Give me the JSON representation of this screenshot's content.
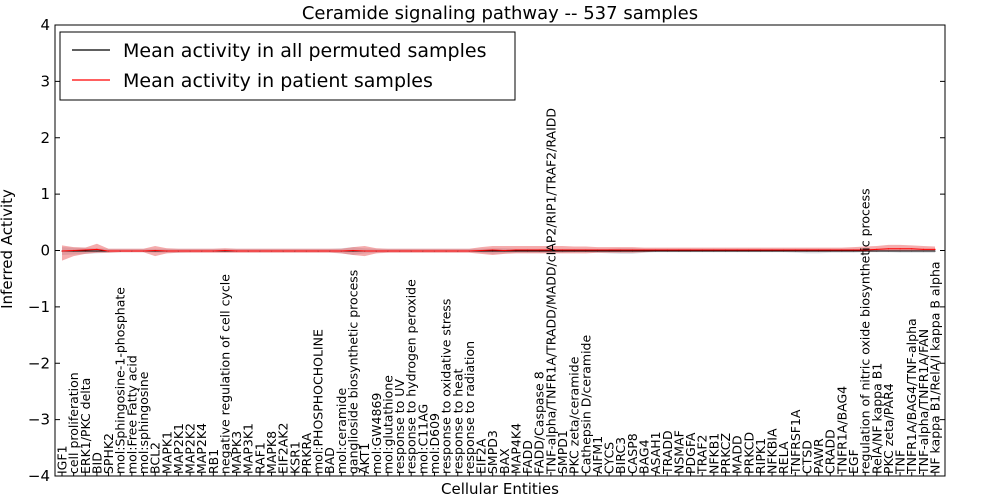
{
  "chart_data": {
    "type": "line",
    "title": "Ceramide signaling pathway -- 537 samples",
    "xlabel": "Cellular Entities",
    "ylabel": "Inferred Activity",
    "ylim": [
      -4,
      4
    ],
    "yticks": [
      -4,
      -3,
      -2,
      -1,
      0,
      1,
      2,
      3,
      4
    ],
    "ytick_labels": [
      "−4",
      "−3",
      "−2",
      "−1",
      "0",
      "1",
      "2",
      "3",
      "4"
    ],
    "grid": false,
    "legend_position": "top-left",
    "categories": [
      "IGF1",
      "cell proliferation",
      "ERK1/PKC delta",
      "BID",
      "SPHK2",
      "mol:Sphingosine-1-phosphate",
      "mol:Free Fatty acid",
      "mol:sphingosine",
      "BCL2",
      "MAPK1",
      "MAP2K1",
      "MAP2K2",
      "MAP2K4",
      "RB1",
      "negative regulation of cell cycle",
      "MAPK3",
      "MAP3K1",
      "RAF1",
      "MAPK8",
      "EIF2AK2",
      "KSR1",
      "PRKRA",
      "mol:PHOSPHOCHOLINE",
      "BAD",
      "mol:ceramide",
      "ganglioside biosynthetic process",
      "AKT1",
      "mol:GW4869",
      "mol:glutathione",
      "response to UV",
      "response to hydrogen peroxide",
      "mol:C11AG",
      "mol:D609",
      "response to oxidative stress",
      "response to heat",
      "response to radiation",
      "EIF2A",
      "SMPD3",
      "BAX",
      "MAP4K4",
      "FADD",
      "FADD/Caspase 8",
      "TNF-alpha/TNFR1A/TRADD/MADD/cIAP2/RIP1/TRAF2/RAIDD",
      "SMPD1",
      "PKC zeta/ceramide",
      "Cathepsin D/ceramide",
      "AIFM1",
      "CYCS",
      "BIRC3",
      "CASP8",
      "BAG4",
      "ASAH1",
      "TRADD",
      "NSMAF",
      "PDGFA",
      "TRAF2",
      "NFKB1",
      "PRKCZ",
      "MADD",
      "PRKCD",
      "RIPK1",
      "NFKBIA",
      "RELA",
      "TNFRSF1A",
      "CTSD",
      "PAWR",
      "CRADD",
      "TNFR1A/BAG4",
      "EGF",
      "regulation of nitric oxide biosynthetic process",
      "RelA/NF kappa B1",
      "PKC zeta/PAR4",
      "TNF",
      "TNFR1A/BAG4/TNF-alpha",
      "TNF-alpha/TNFR1A/FAN",
      "NF kappa B1/RelA/I kappa B alpha"
    ],
    "series": [
      {
        "name": "Mean activity in all permuted samples",
        "color": "#000000",
        "values": [
          -0.01,
          -0.01,
          -0.01,
          -0.01,
          -0.01,
          -0.01,
          -0.01,
          -0.01,
          -0.01,
          -0.01,
          -0.01,
          -0.01,
          -0.01,
          -0.01,
          -0.01,
          -0.01,
          -0.01,
          -0.01,
          -0.01,
          -0.01,
          -0.01,
          -0.01,
          -0.01,
          -0.01,
          -0.01,
          -0.01,
          -0.01,
          -0.01,
          -0.01,
          -0.01,
          -0.01,
          -0.01,
          -0.01,
          -0.01,
          -0.01,
          -0.01,
          -0.01,
          -0.01,
          -0.01,
          -0.01,
          -0.01,
          -0.01,
          -0.01,
          -0.01,
          -0.01,
          -0.01,
          -0.01,
          -0.01,
          -0.01,
          -0.01,
          -0.01,
          -0.01,
          -0.01,
          -0.01,
          -0.01,
          -0.01,
          -0.01,
          -0.01,
          -0.01,
          -0.01,
          -0.01,
          -0.01,
          -0.01,
          -0.01,
          -0.01,
          -0.01,
          -0.01,
          -0.01,
          -0.01,
          -0.01,
          -0.01,
          -0.01,
          -0.01,
          -0.01,
          -0.01,
          -0.01
        ],
        "band_lower": [
          -0.08,
          -0.07,
          -0.06,
          -0.05,
          -0.04,
          -0.03,
          -0.03,
          -0.03,
          -0.04,
          -0.04,
          -0.04,
          -0.03,
          -0.03,
          -0.03,
          -0.03,
          -0.03,
          -0.03,
          -0.03,
          -0.03,
          -0.03,
          -0.03,
          -0.03,
          -0.03,
          -0.03,
          -0.05,
          -0.08,
          -0.05,
          -0.04,
          -0.03,
          -0.03,
          -0.03,
          -0.03,
          -0.03,
          -0.03,
          -0.03,
          -0.03,
          -0.04,
          -0.06,
          -0.05,
          -0.04,
          -0.04,
          -0.04,
          -0.04,
          -0.04,
          -0.03,
          -0.03,
          -0.04,
          -0.05,
          -0.06,
          -0.06,
          -0.04,
          -0.03,
          -0.03,
          -0.03,
          -0.03,
          -0.03,
          -0.03,
          -0.03,
          -0.03,
          -0.03,
          -0.03,
          -0.03,
          -0.03,
          -0.04,
          -0.05,
          -0.05,
          -0.04,
          -0.04,
          -0.04,
          -0.03,
          -0.03,
          -0.03,
          -0.04,
          -0.04,
          -0.04,
          -0.04
        ],
        "band_upper": [
          0.06,
          0.05,
          0.05,
          0.04,
          0.03,
          0.03,
          0.03,
          0.03,
          0.03,
          0.03,
          0.03,
          0.03,
          0.03,
          0.03,
          0.03,
          0.03,
          0.03,
          0.03,
          0.03,
          0.03,
          0.03,
          0.03,
          0.03,
          0.03,
          0.04,
          0.06,
          0.04,
          0.03,
          0.03,
          0.03,
          0.03,
          0.03,
          0.03,
          0.03,
          0.03,
          0.03,
          0.03,
          0.04,
          0.04,
          0.03,
          0.03,
          0.03,
          0.03,
          0.03,
          0.03,
          0.03,
          0.03,
          0.03,
          0.04,
          0.04,
          0.03,
          0.03,
          0.03,
          0.03,
          0.03,
          0.03,
          0.03,
          0.03,
          0.03,
          0.03,
          0.03,
          0.03,
          0.03,
          0.03,
          0.03,
          0.03,
          0.03,
          0.03,
          0.03,
          0.03,
          0.03,
          0.03,
          0.03,
          0.03,
          0.03,
          0.03
        ]
      },
      {
        "name": "Mean activity in patient samples",
        "color": "#ff0000",
        "values": [
          -0.01,
          0.0,
          0.01,
          0.02,
          -0.01,
          -0.01,
          -0.01,
          -0.01,
          0.0,
          -0.01,
          -0.01,
          -0.01,
          -0.01,
          -0.01,
          0.0,
          -0.01,
          -0.01,
          -0.01,
          -0.01,
          -0.01,
          -0.01,
          -0.01,
          -0.01,
          -0.01,
          -0.01,
          0.0,
          -0.01,
          -0.01,
          -0.01,
          -0.01,
          -0.01,
          -0.01,
          -0.01,
          -0.01,
          -0.01,
          -0.01,
          0.0,
          0.01,
          0.0,
          0.01,
          0.01,
          0.01,
          0.01,
          0.01,
          0.01,
          0.01,
          0.01,
          0.01,
          0.01,
          0.01,
          0.01,
          0.01,
          0.01,
          0.01,
          0.01,
          0.01,
          0.01,
          0.01,
          0.01,
          0.01,
          0.01,
          0.01,
          0.01,
          0.01,
          0.01,
          0.01,
          0.01,
          0.01,
          0.01,
          0.01,
          0.02,
          0.03,
          0.03,
          0.03,
          0.02,
          0.02
        ],
        "band_lower": [
          -0.18,
          -0.1,
          -0.06,
          -0.04,
          -0.04,
          -0.03,
          -0.03,
          -0.03,
          -0.1,
          -0.05,
          -0.04,
          -0.04,
          -0.04,
          -0.04,
          -0.04,
          -0.04,
          -0.04,
          -0.04,
          -0.04,
          -0.04,
          -0.04,
          -0.04,
          -0.04,
          -0.04,
          -0.05,
          -0.08,
          -0.1,
          -0.05,
          -0.04,
          -0.04,
          -0.04,
          -0.04,
          -0.04,
          -0.04,
          -0.04,
          -0.04,
          -0.06,
          -0.08,
          -0.06,
          -0.05,
          -0.05,
          -0.05,
          -0.05,
          -0.05,
          -0.05,
          -0.05,
          -0.04,
          -0.04,
          -0.04,
          -0.04,
          -0.03,
          -0.02,
          -0.02,
          -0.02,
          -0.02,
          -0.02,
          -0.02,
          -0.02,
          -0.02,
          -0.02,
          -0.02,
          -0.02,
          -0.02,
          -0.02,
          -0.02,
          -0.02,
          -0.02,
          -0.02,
          -0.02,
          -0.02,
          -0.02,
          -0.01,
          -0.01,
          -0.01,
          -0.01,
          -0.01
        ],
        "band_upper": [
          0.09,
          0.06,
          0.05,
          0.12,
          0.03,
          0.03,
          0.03,
          0.03,
          0.08,
          0.04,
          0.03,
          0.03,
          0.03,
          0.03,
          0.04,
          0.03,
          0.03,
          0.03,
          0.03,
          0.03,
          0.03,
          0.03,
          0.03,
          0.03,
          0.03,
          0.06,
          0.08,
          0.04,
          0.03,
          0.03,
          0.03,
          0.03,
          0.03,
          0.03,
          0.03,
          0.03,
          0.06,
          0.08,
          0.08,
          0.08,
          0.08,
          0.08,
          0.08,
          0.08,
          0.07,
          0.07,
          0.06,
          0.06,
          0.06,
          0.06,
          0.05,
          0.05,
          0.05,
          0.05,
          0.05,
          0.05,
          0.05,
          0.05,
          0.05,
          0.05,
          0.05,
          0.05,
          0.05,
          0.05,
          0.05,
          0.05,
          0.05,
          0.05,
          0.06,
          0.07,
          0.08,
          0.1,
          0.1,
          0.09,
          0.08,
          0.07
        ]
      }
    ]
  }
}
